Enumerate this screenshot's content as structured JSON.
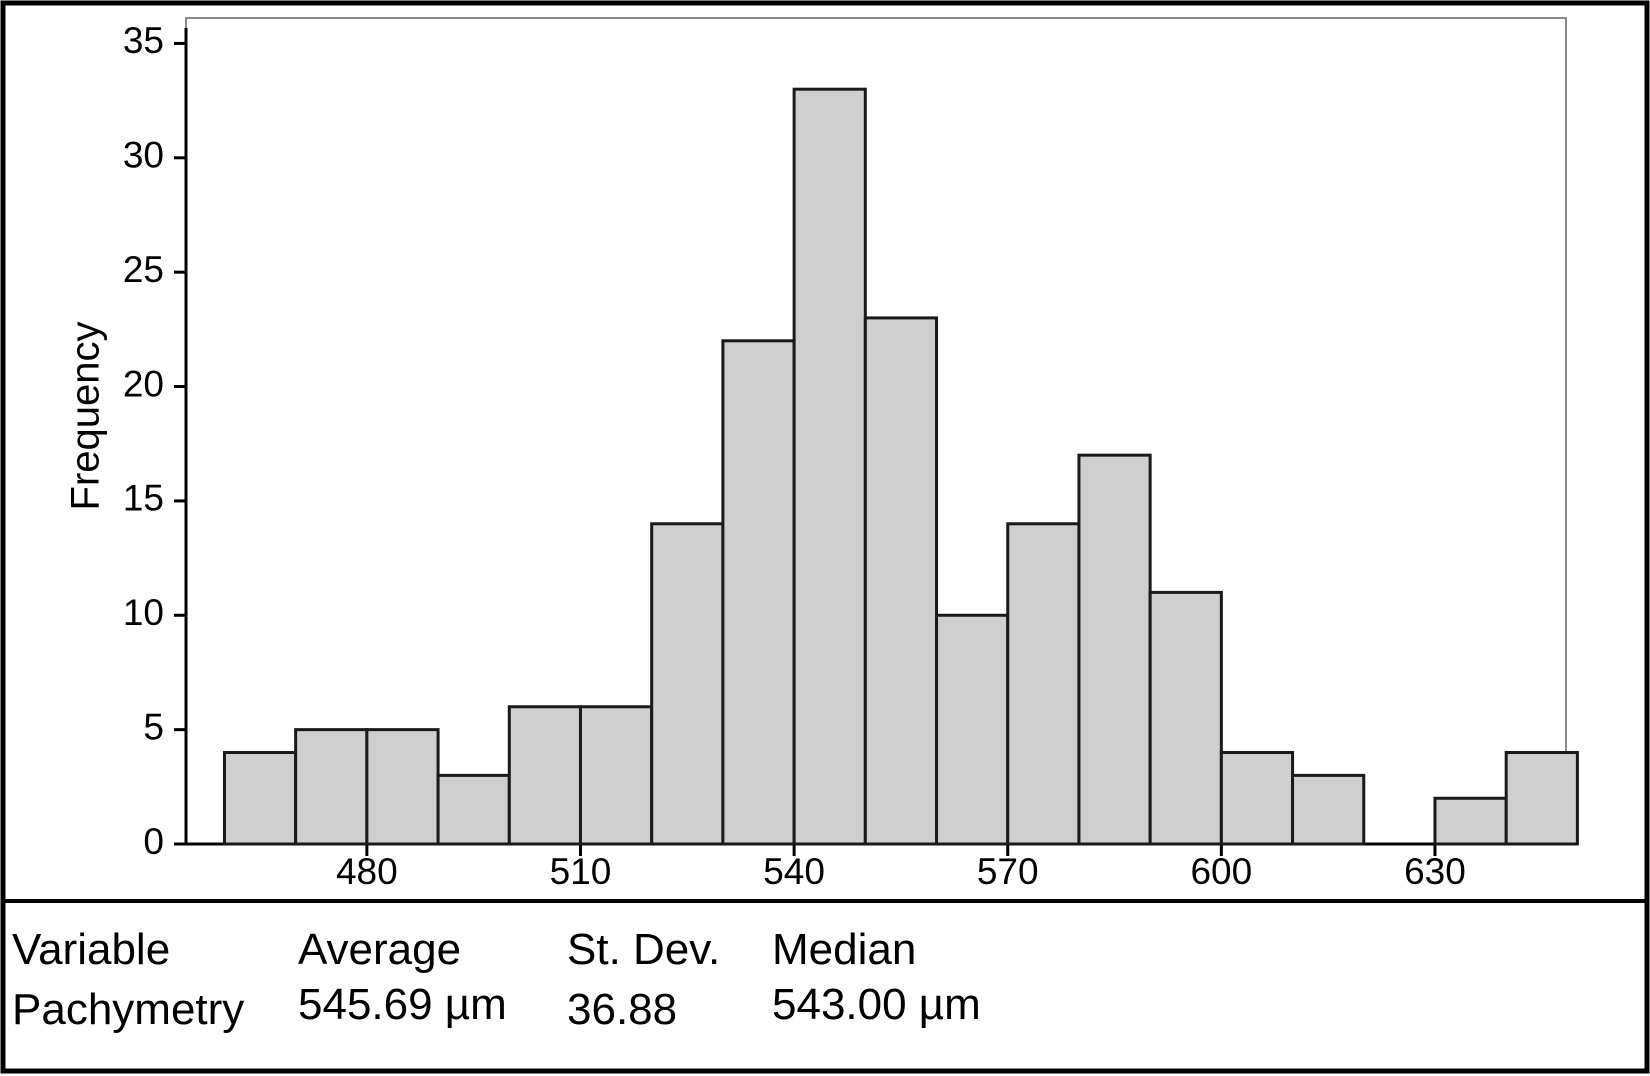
{
  "chart_data": {
    "type": "bar",
    "title": "",
    "xlabel": "",
    "ylabel": "Frequency",
    "x_tick_labels": [
      "480",
      "510",
      "540",
      "570",
      "600",
      "630"
    ],
    "x_ticks": [
      480,
      510,
      540,
      570,
      600,
      630
    ],
    "y_tick_labels": [
      "0",
      "5",
      "10",
      "15",
      "20",
      "25",
      "30",
      "35"
    ],
    "y_ticks": [
      0,
      5,
      10,
      15,
      20,
      25,
      30,
      35
    ],
    "ylim": [
      0,
      35.5
    ],
    "xlim": [
      454.6,
      648.4
    ],
    "bin_width": 10,
    "bin_centers": [
      465,
      475,
      485,
      495,
      505,
      515,
      525,
      535,
      545,
      555,
      565,
      575,
      585,
      595,
      605,
      615,
      625,
      635,
      645
    ],
    "values": [
      4,
      5,
      5,
      3,
      6,
      6,
      14,
      22,
      33,
      23,
      10,
      14,
      17,
      11,
      4,
      3,
      0,
      2,
      4
    ],
    "grid": false,
    "legend": "none"
  },
  "stats": {
    "headers": [
      "Variable",
      "Average",
      "St. Dev.",
      "Median"
    ],
    "row": [
      "Pachymetry",
      "545.69 µm",
      "36.88",
      "543.00 µm"
    ]
  }
}
